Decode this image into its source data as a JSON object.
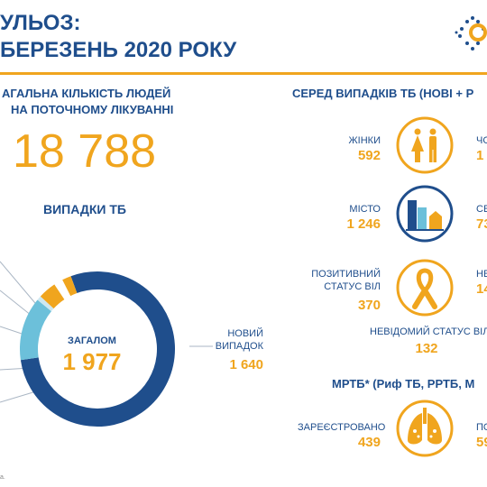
{
  "header": {
    "title_line1": "УЛЬОЗ:",
    "title_line2": "БЕРЕЗЕНЬ 2020 РОКУ"
  },
  "left": {
    "people_line1": "АГАЛЬНА КІЛЬКІСТЬ ЛЮДЕЙ",
    "people_line2": "НА ПОТОЧНОМУ ЛІКУВАННІ",
    "people_value": "18 788",
    "cases_title": "ВИПАДКИ ТБ",
    "total_label": "ЗАГАЛОМ",
    "total_value": "1 977",
    "new_label_line1": "НОВИЙ",
    "new_label_line2": "ВИПАДОК",
    "new_value": "1 640"
  },
  "chart_data": {
    "type": "pie",
    "total": 1977,
    "slices": [
      {
        "name": "НОВИЙ ВИПАДОК",
        "value": 1640,
        "color": "#1f4e8c"
      },
      {
        "name": "",
        "value": 0.14,
        "color": "#6cc0da",
        "unit": "fraction"
      },
      {
        "name": "",
        "value": 0.01,
        "color": "#cde8f2",
        "unit": "fraction"
      },
      {
        "name": "",
        "value": 0.04,
        "color": "#f0a51e",
        "unit": "fraction"
      },
      {
        "name": "",
        "value": 0.02,
        "color": "#ffffff",
        "unit": "fraction"
      },
      {
        "name": "",
        "value": 0.02,
        "color": "#f0a51e",
        "unit": "fraction"
      }
    ]
  },
  "right": {
    "title": "СЕРЕД ВИПАДКІВ ТБ (НОВІ + Р",
    "women_label": "ЖІНКИ",
    "women_value": "592",
    "men_label": "ЧО",
    "men_value": "1",
    "city_label": "МІСТО",
    "city_value": "1 246",
    "village_label": "СЕ",
    "village_value": "73",
    "hiv_pos_line1": "ПОЗИТИВНИЙ",
    "hiv_pos_line2": "СТАТУС ВІЛ",
    "hiv_pos_value": "370",
    "hiv_neg_label": "НЕ",
    "hiv_neg_value": "14",
    "hiv_unknown_label": "НЕВІДОМИЙ СТАТУС ВІЛ",
    "hiv_unknown_value": "132",
    "mdr_title": "МРТБ* (Риф ТБ, РРТБ, М",
    "registered_label": "ЗАРЕЄСТРОВАНО",
    "registered_value": "439",
    "started_label": "ПО",
    "started_value": "59"
  },
  "footer": {
    "note": "а."
  },
  "colors": {
    "navy": "#1f4e8c",
    "orange": "#f0a51e",
    "light_blue": "#6cc0da"
  }
}
